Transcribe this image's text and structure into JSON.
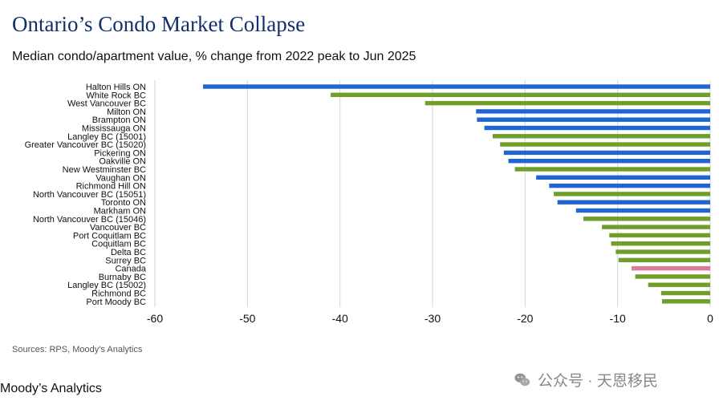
{
  "title": "Ontario’s Condo Market Collapse",
  "subtitle": "Median condo/apartment value, % change from 2022 peak to Jun 2025",
  "source": "Sources: RPS, Moody’s Analytics",
  "brand": "Moody’s Analytics",
  "watermark": {
    "text": "公众号 · 天恩移民",
    "icon": "wechat-icon"
  },
  "colors": {
    "ontario": "#1f66d1",
    "bc": "#6f9f2a",
    "canada": "#e0789c",
    "grid": "#d4d4d4",
    "axis": "#d0d0d0",
    "title": "#14306a"
  },
  "chart_data": {
    "type": "bar",
    "orientation": "horizontal",
    "categories": [
      "Halton Hills ON",
      "White Rock BC",
      "West Vancouver BC",
      "Milton ON",
      "Brampton ON",
      "Mississauga ON",
      "Langley BC (15001)",
      "Greater Vancouver BC (15020)",
      "Pickering ON",
      "Oakville ON",
      "New Westminster BC",
      "Vaughan ON",
      "Richmond Hill ON",
      "North Vancouver BC (15051)",
      "Toronto ON",
      "Markham ON",
      "North Vancouver BC (15046)",
      "Vancouver BC",
      "Port Coquitlam BC",
      "Coquitlam BC",
      "Delta BC",
      "Surrey BC",
      "Canada",
      "Burnaby BC",
      "Langley BC (15002)",
      "Richmond BC",
      "Port Moody BC"
    ],
    "values": [
      -54.8,
      -41.0,
      -30.8,
      -25.3,
      -25.2,
      -24.4,
      -23.5,
      -22.7,
      -22.3,
      -21.8,
      -21.1,
      -18.8,
      -17.4,
      -16.9,
      -16.5,
      -14.5,
      -13.7,
      -11.7,
      -10.9,
      -10.7,
      -10.2,
      -9.9,
      -8.5,
      -8.1,
      -6.7,
      -5.3,
      -5.2
    ],
    "groups": [
      "ontario",
      "bc",
      "bc",
      "ontario",
      "ontario",
      "ontario",
      "bc",
      "bc",
      "ontario",
      "ontario",
      "bc",
      "ontario",
      "ontario",
      "bc",
      "ontario",
      "ontario",
      "bc",
      "bc",
      "bc",
      "bc",
      "bc",
      "bc",
      "canada",
      "bc",
      "bc",
      "bc",
      "bc"
    ],
    "xlim": [
      -60,
      0
    ],
    "xticks": [
      -60,
      -50,
      -40,
      -30,
      -20,
      -10,
      0
    ],
    "xlabel": "",
    "ylabel": "",
    "grid": "vertical",
    "legend": "none"
  }
}
